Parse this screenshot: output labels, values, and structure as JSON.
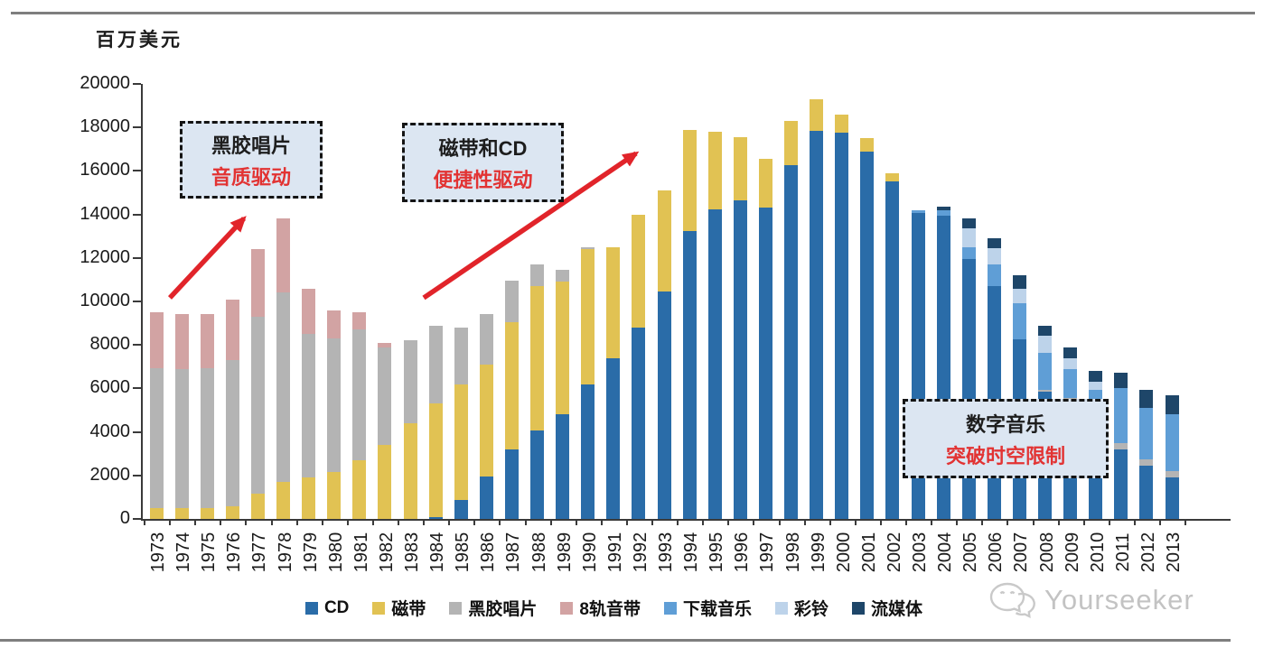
{
  "unit_label": "百万美元",
  "watermark": {
    "text": "Yourseeker"
  },
  "annotations": [
    {
      "line1": "黑胶唱片",
      "line2": "音质驱动"
    },
    {
      "line1": "磁带和CD",
      "line2": "便捷性驱动"
    },
    {
      "line1": "数字音乐",
      "line2": "突破时空限制"
    }
  ],
  "colors": {
    "arrow": "#e1242a",
    "annotation_red": "#e23333",
    "annotation_fill": "#dce6f2",
    "axis": "#3a3a3a",
    "watermark_gray": "#c3c3c3"
  },
  "chart_data": {
    "type": "bar",
    "stacked": true,
    "title": "",
    "unit_label": "百万美元",
    "xlabel": "",
    "ylabel": "百万美元",
    "ylim": [
      0,
      20000
    ],
    "ytick_step": 2000,
    "grid": false,
    "legend_position": "bottom",
    "years": [
      "1973",
      "1974",
      "1975",
      "1976",
      "1977",
      "1978",
      "1979",
      "1980",
      "1981",
      "1982",
      "1983",
      "1984",
      "1985",
      "1986",
      "1987",
      "1988",
      "1989",
      "1990",
      "1991",
      "1992",
      "1993",
      "1994",
      "1995",
      "1996",
      "1997",
      "1998",
      "1999",
      "2000",
      "2001",
      "2002",
      "2003",
      "2004",
      "2005",
      "2006",
      "2007",
      "2008",
      "2009",
      "2010",
      "2011",
      "2012",
      "2013"
    ],
    "series": [
      {
        "name": "CD",
        "color": "#2a6ca8",
        "values": [
          0,
          0,
          0,
          0,
          0,
          0,
          0,
          0,
          0,
          0,
          0,
          100,
          870,
          1950,
          3200,
          4050,
          4800,
          6200,
          7400,
          8800,
          10450,
          13250,
          14250,
          14650,
          14300,
          16250,
          17850,
          17750,
          16900,
          15500,
          14050,
          13950,
          11950,
          10700,
          8250,
          5850,
          5450,
          4100,
          3200,
          2450,
          1900
        ]
      },
      {
        "name": "磁带",
        "color": "#e1c253",
        "values": [
          500,
          500,
          500,
          600,
          1150,
          1700,
          1900,
          2150,
          2700,
          3400,
          4400,
          5200,
          5330,
          5150,
          5850,
          6650,
          6100,
          6200,
          5100,
          5200,
          4650,
          4650,
          3550,
          2900,
          2250,
          2050,
          1450,
          850,
          600,
          400,
          0,
          0,
          0,
          0,
          0,
          0,
          0,
          0,
          0,
          0,
          0
        ]
      },
      {
        "name": "黑胶唱片",
        "color": "#b4b4b4",
        "values": [
          6450,
          6400,
          6450,
          6700,
          8150,
          8700,
          6600,
          6150,
          6000,
          4500,
          3800,
          3600,
          2600,
          2300,
          1900,
          1000,
          550,
          100,
          0,
          0,
          0,
          0,
          0,
          0,
          0,
          0,
          0,
          0,
          0,
          0,
          0,
          0,
          0,
          0,
          0,
          100,
          100,
          150,
          280,
          300,
          280
        ]
      },
      {
        "name": "8轨音带",
        "color": "#d2a3a3",
        "values": [
          2550,
          2500,
          2450,
          2800,
          3100,
          3400,
          2100,
          1300,
          800,
          200,
          0,
          0,
          0,
          0,
          0,
          0,
          0,
          0,
          0,
          0,
          0,
          0,
          0,
          0,
          0,
          0,
          0,
          0,
          0,
          0,
          0,
          0,
          0,
          0,
          0,
          0,
          0,
          0,
          0,
          0,
          0
        ]
      },
      {
        "name": "下载音乐",
        "color": "#5f9ed6",
        "values": [
          0,
          0,
          0,
          0,
          0,
          0,
          0,
          0,
          0,
          0,
          0,
          0,
          0,
          0,
          0,
          0,
          0,
          0,
          0,
          0,
          0,
          0,
          0,
          0,
          0,
          0,
          0,
          0,
          0,
          0,
          150,
          250,
          550,
          1000,
          1650,
          1700,
          1350,
          1700,
          2550,
          2350,
          2650
        ]
      },
      {
        "name": "彩铃",
        "color": "#bdd3ea",
        "values": [
          0,
          0,
          0,
          0,
          0,
          0,
          0,
          0,
          0,
          0,
          0,
          0,
          0,
          0,
          0,
          0,
          0,
          0,
          0,
          0,
          0,
          0,
          0,
          0,
          0,
          0,
          0,
          0,
          0,
          0,
          0,
          0,
          850,
          750,
          700,
          780,
          500,
          350,
          0,
          0,
          0
        ]
      },
      {
        "name": "流媒体",
        "color": "#1e4669",
        "values": [
          0,
          0,
          0,
          0,
          0,
          0,
          0,
          0,
          0,
          0,
          0,
          0,
          0,
          0,
          0,
          0,
          0,
          0,
          0,
          0,
          0,
          0,
          0,
          0,
          0,
          0,
          0,
          0,
          0,
          0,
          0,
          150,
          450,
          450,
          600,
          470,
          500,
          500,
          700,
          850,
          870
        ]
      }
    ]
  }
}
